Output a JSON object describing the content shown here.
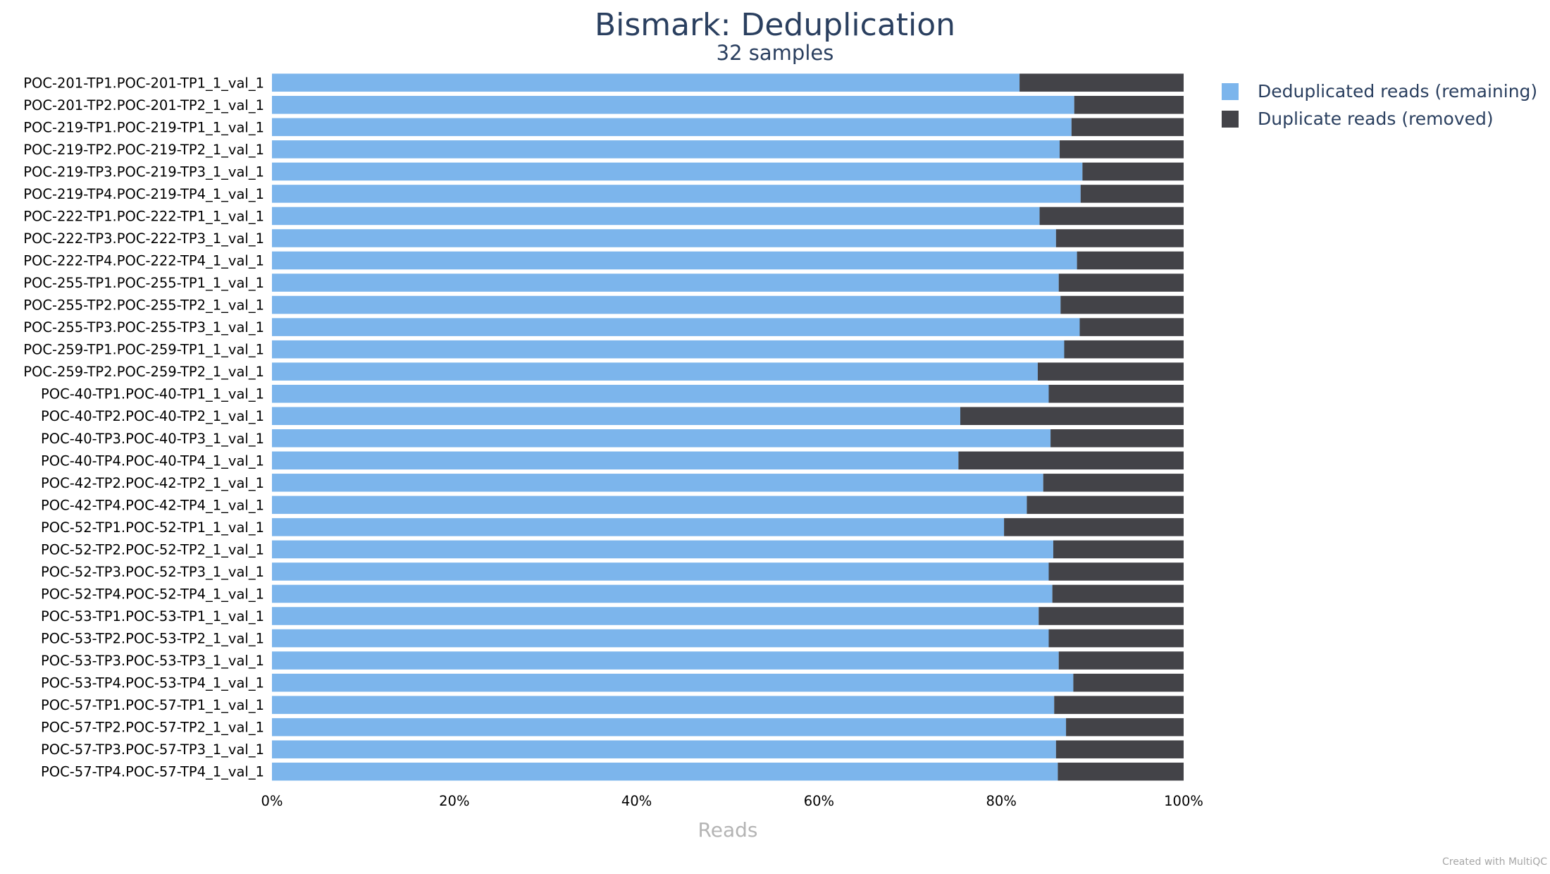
{
  "chart_data": {
    "type": "bar",
    "orientation": "horizontal",
    "stacked": true,
    "normalized": true,
    "title": "Bismark: Deduplication",
    "subtitle": "32 samples",
    "xlabel": "Reads",
    "xlim": [
      0,
      100
    ],
    "xticks": [
      "0%",
      "20%",
      "40%",
      "60%",
      "80%",
      "100%"
    ],
    "grid": false,
    "legend_position": "top-right",
    "categories": [
      "POC-201-TP1.POC-201-TP1_1_val_1",
      "POC-201-TP2.POC-201-TP2_1_val_1",
      "POC-219-TP1.POC-219-TP1_1_val_1",
      "POC-219-TP2.POC-219-TP2_1_val_1",
      "POC-219-TP3.POC-219-TP3_1_val_1",
      "POC-219-TP4.POC-219-TP4_1_val_1",
      "POC-222-TP1.POC-222-TP1_1_val_1",
      "POC-222-TP3.POC-222-TP3_1_val_1",
      "POC-222-TP4.POC-222-TP4_1_val_1",
      "POC-255-TP1.POC-255-TP1_1_val_1",
      "POC-255-TP2.POC-255-TP2_1_val_1",
      "POC-255-TP3.POC-255-TP3_1_val_1",
      "POC-259-TP1.POC-259-TP1_1_val_1",
      "POC-259-TP2.POC-259-TP2_1_val_1",
      "POC-40-TP1.POC-40-TP1_1_val_1",
      "POC-40-TP2.POC-40-TP2_1_val_1",
      "POC-40-TP3.POC-40-TP3_1_val_1",
      "POC-40-TP4.POC-40-TP4_1_val_1",
      "POC-42-TP2.POC-42-TP2_1_val_1",
      "POC-42-TP4.POC-42-TP4_1_val_1",
      "POC-52-TP1.POC-52-TP1_1_val_1",
      "POC-52-TP2.POC-52-TP2_1_val_1",
      "POC-52-TP3.POC-52-TP3_1_val_1",
      "POC-52-TP4.POC-52-TP4_1_val_1",
      "POC-53-TP1.POC-53-TP1_1_val_1",
      "POC-53-TP2.POC-53-TP2_1_val_1",
      "POC-53-TP3.POC-53-TP3_1_val_1",
      "POC-53-TP4.POC-53-TP4_1_val_1",
      "POC-57-TP1.POC-57-TP1_1_val_1",
      "POC-57-TP2.POC-57-TP2_1_val_1",
      "POC-57-TP3.POC-57-TP3_1_val_1",
      "POC-57-TP4.POC-57-TP4_1_val_1"
    ],
    "series": [
      {
        "name": "Deduplicated reads (remaining)",
        "color": "#7cb5ec",
        "values": [
          82.0,
          88.0,
          87.7,
          86.4,
          88.9,
          88.7,
          84.2,
          86.0,
          88.3,
          86.3,
          86.5,
          88.6,
          86.9,
          84.0,
          85.2,
          75.5,
          85.4,
          75.3,
          84.6,
          82.8,
          80.3,
          85.7,
          85.2,
          85.6,
          84.1,
          85.2,
          86.3,
          87.9,
          85.8,
          87.1,
          86.0,
          86.2
        ]
      },
      {
        "name": "Duplicate reads (removed)",
        "color": "#434348",
        "values": [
          18.0,
          12.0,
          12.3,
          13.6,
          11.1,
          11.3,
          15.8,
          14.0,
          11.7,
          13.7,
          13.5,
          11.4,
          13.1,
          16.0,
          14.8,
          24.5,
          14.6,
          24.7,
          15.4,
          17.2,
          19.7,
          14.3,
          14.8,
          14.4,
          15.9,
          14.8,
          13.7,
          12.1,
          14.2,
          12.9,
          14.0,
          13.8
        ]
      }
    ]
  },
  "credit": "Created with MultiQC"
}
